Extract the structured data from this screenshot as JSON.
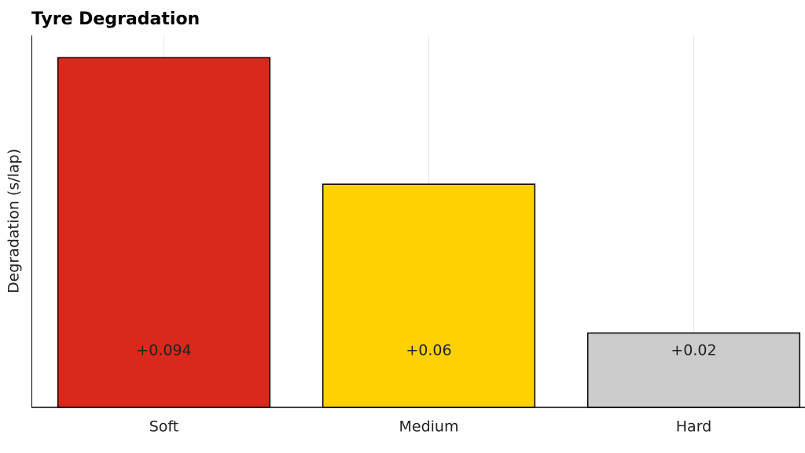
{
  "chart_data": {
    "type": "bar",
    "title": "Tyre Degradation",
    "y_label": "Degradation (s/lap)",
    "categories": [
      "Soft",
      "Medium",
      "Hard"
    ],
    "values": [
      0.094,
      0.06,
      0.02
    ],
    "value_labels": [
      "+0.094",
      "+0.06",
      "+0.02"
    ],
    "colors": [
      "#da291c",
      "#ffd100",
      "#cccccc"
    ],
    "ylim": [
      0,
      0.1
    ],
    "grid": true
  }
}
